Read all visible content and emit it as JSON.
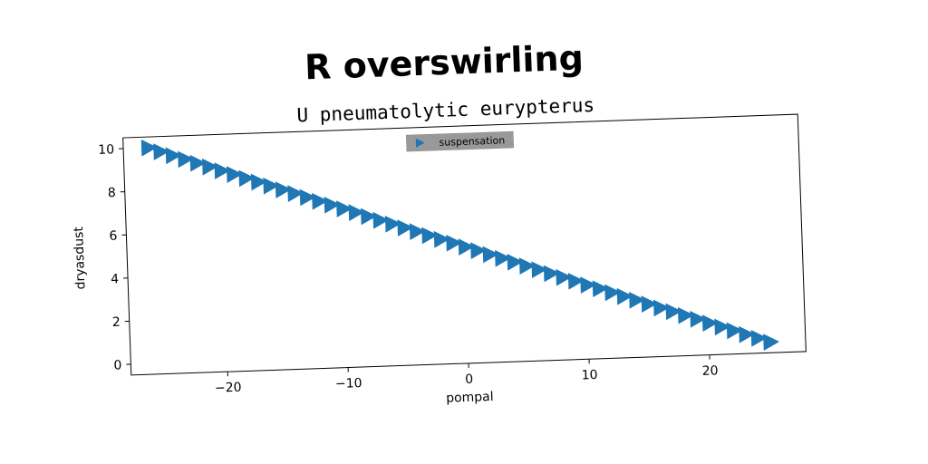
{
  "chart_data": {
    "type": "scatter",
    "title": "R overswirling",
    "subtitle": "U pneumatolytic eurypterus",
    "xlabel": "pompal",
    "ylabel": "dryasdust",
    "xlim": [
      -28,
      28
    ],
    "ylim": [
      -0.5,
      10.5
    ],
    "xticks": [
      -20,
      -10,
      0,
      10,
      20
    ],
    "xtick_labels": [
      "−20",
      "−10",
      "0",
      "10",
      "20"
    ],
    "yticks": [
      0,
      2,
      4,
      6,
      8,
      10
    ],
    "ytick_labels": [
      "0",
      "2",
      "4",
      "6",
      "8",
      "10"
    ],
    "grid": false,
    "legend_position": "upper center",
    "marker": "triangle-right",
    "series": [
      {
        "name": "suspensation",
        "color": "#1f77b4",
        "x": [
          -26,
          -25,
          -24,
          -23,
          -22,
          -21,
          -20,
          -19,
          -18,
          -17,
          -16,
          -15,
          -14,
          -13,
          -12,
          -11,
          -10,
          -9,
          -8,
          -7,
          -6,
          -5,
          -4,
          -3,
          -2,
          -1,
          0,
          1,
          2,
          3,
          4,
          5,
          6,
          7,
          8,
          9,
          10,
          11,
          12,
          13,
          14,
          15,
          16,
          17,
          18,
          19,
          20,
          21,
          22,
          23,
          24,
          25
        ],
        "y": [
          10.0,
          9.8,
          9.6,
          9.41,
          9.21,
          9.02,
          8.82,
          8.63,
          8.43,
          8.24,
          8.04,
          7.84,
          7.65,
          7.45,
          7.25,
          7.06,
          6.86,
          6.67,
          6.47,
          6.27,
          6.08,
          5.88,
          5.69,
          5.49,
          5.29,
          5.1,
          4.9,
          4.71,
          4.51,
          4.31,
          4.12,
          3.92,
          3.73,
          3.53,
          3.33,
          3.14,
          2.94,
          2.75,
          2.55,
          2.35,
          2.16,
          1.96,
          1.76,
          1.57,
          1.37,
          1.18,
          0.98,
          0.78,
          0.59,
          0.39,
          0.2,
          0.0
        ]
      }
    ]
  }
}
